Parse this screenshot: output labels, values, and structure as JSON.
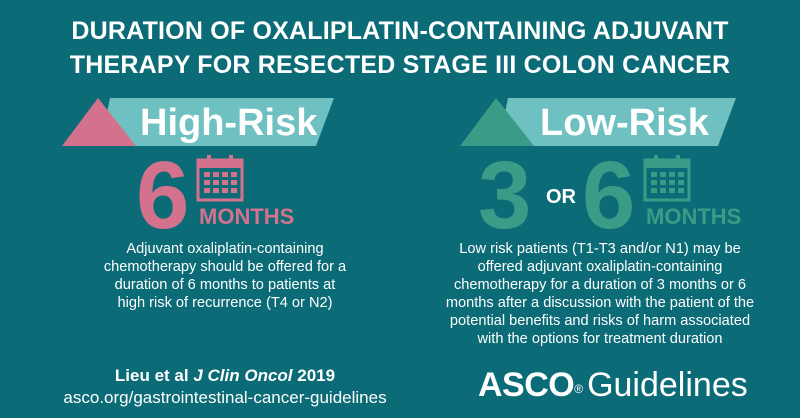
{
  "title": {
    "line1": "DURATION OF OXALIPLATIN-CONTAINING ADJUVANT",
    "line2": "THERAPY FOR RESECTED STAGE III COLON CANCER"
  },
  "high_risk": {
    "label": "High-Risk",
    "number": "6",
    "unit": "MONTHS",
    "description": [
      "Adjuvant oxaliplatin-containing",
      "chemotherapy should be offered for a",
      "duration of 6 months to patients at",
      "high risk of recurrence (T4 or N2)"
    ]
  },
  "low_risk": {
    "label": "Low-Risk",
    "number_a": "3",
    "or_word": "OR",
    "number_b": "6",
    "unit": "MONTHS",
    "description": [
      "Low risk patients (T1-T3 and/or N1) may be",
      "offered adjuvant oxaliplatin-containing",
      "chemotherapy for a duration of 3 months or 6",
      "months after a discussion with the patient of the",
      "potential benefits and risks of harm associated",
      "with the options for treatment duration"
    ]
  },
  "citation": {
    "authors": "Lieu et al ",
    "journal": "J Clin Oncol",
    "year": " 2019"
  },
  "url": "asco.org/gastrointestinal-cancer-guidelines",
  "logo": {
    "brand": "ASCO",
    "reg_mark": "®",
    "word": "Guidelines"
  },
  "colors": {
    "background": "#0b6b76",
    "high_risk_accent": "#d4718d",
    "low_risk_accent": "#3a9c86",
    "banner_teal": "#6fc0c0"
  },
  "icons": [
    "calendar-icon"
  ]
}
